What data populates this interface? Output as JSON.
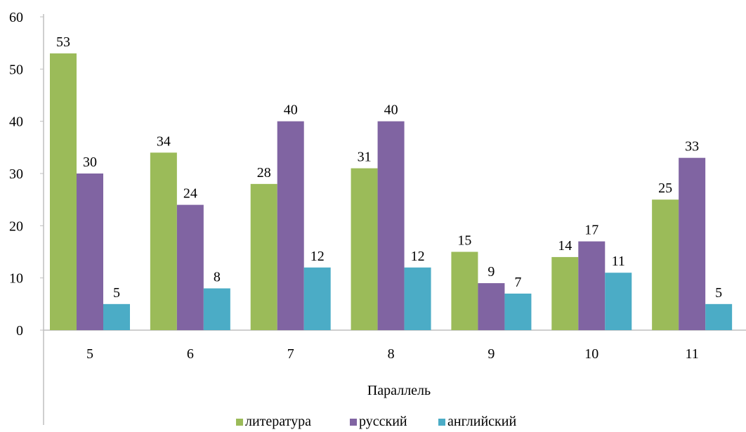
{
  "chart_data": {
    "type": "bar",
    "title": "",
    "xlabel": "Параллель",
    "ylabel": "",
    "ylim": [
      0,
      60
    ],
    "yticks": [
      0,
      10,
      20,
      30,
      40,
      50,
      60
    ],
    "grid": false,
    "legend_position": "bottom",
    "categories": [
      "5",
      "6",
      "7",
      "8",
      "9",
      "10",
      "11"
    ],
    "series": [
      {
        "name": "литература",
        "color": "#9bbb59",
        "values": [
          53,
          34,
          28,
          31,
          15,
          14,
          25
        ]
      },
      {
        "name": "русский",
        "color": "#8064a2",
        "values": [
          30,
          24,
          40,
          40,
          9,
          17,
          33
        ]
      },
      {
        "name": "английский",
        "color": "#4bacc6",
        "values": [
          5,
          8,
          12,
          12,
          7,
          11,
          5
        ]
      }
    ]
  }
}
